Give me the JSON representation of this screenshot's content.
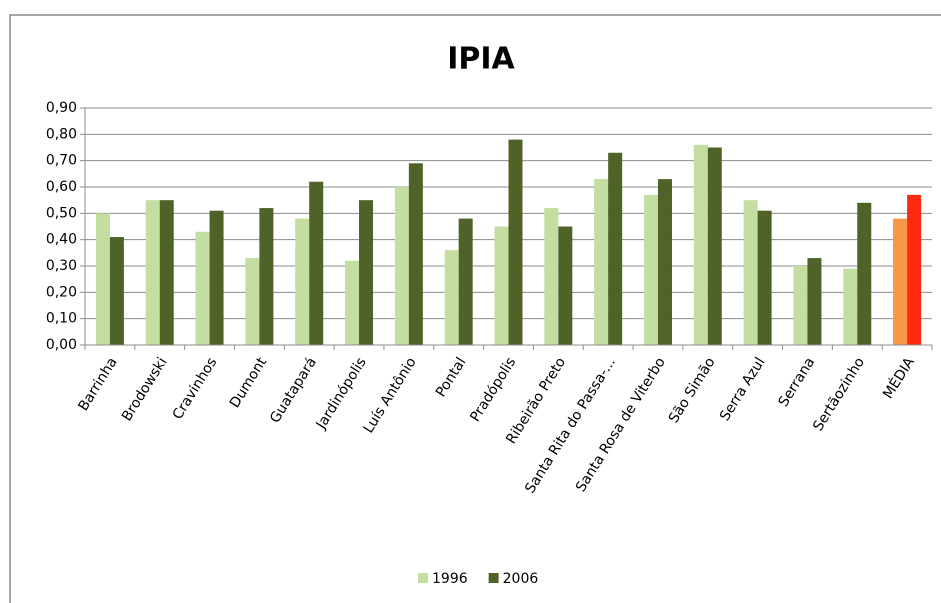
{
  "chart_data": {
    "type": "bar",
    "title": "IPIA",
    "categories": [
      "Barrinha",
      "Brodowski",
      "Cravinhos",
      "Dumont",
      "Guatapará",
      "Jardinópolis",
      "Luís Antônio",
      "Pontal",
      "Pradópolis",
      "Ribeirão Preto",
      "Santa Rita do Passa-...",
      "Santa Rosa de Viterbo",
      "São Simão",
      "Serra Azul",
      "Serrana",
      "Sertãozinho",
      "MÉDIA"
    ],
    "series": [
      {
        "name": "1996",
        "color": "#c3dea0",
        "colors": [
          "#c3dea0",
          "#c3dea0",
          "#c3dea0",
          "#c3dea0",
          "#c3dea0",
          "#c3dea0",
          "#c3dea0",
          "#c3dea0",
          "#c3dea0",
          "#c3dea0",
          "#c3dea0",
          "#c3dea0",
          "#c3dea0",
          "#c3dea0",
          "#c3dea0",
          "#c3dea0",
          "#f79646"
        ],
        "values": [
          0.5,
          0.55,
          0.43,
          0.33,
          0.48,
          0.32,
          0.6,
          0.36,
          0.45,
          0.52,
          0.63,
          0.57,
          0.76,
          0.55,
          0.3,
          0.29,
          0.48
        ]
      },
      {
        "name": "2006",
        "color": "#4f6228",
        "colors": [
          "#4f6228",
          "#4f6228",
          "#4f6228",
          "#4f6228",
          "#4f6228",
          "#4f6228",
          "#4f6228",
          "#4f6228",
          "#4f6228",
          "#4f6228",
          "#4f6228",
          "#4f6228",
          "#4f6228",
          "#4f6228",
          "#4f6228",
          "#4f6228",
          "#ff2a0f"
        ],
        "values": [
          0.41,
          0.55,
          0.51,
          0.52,
          0.62,
          0.55,
          0.69,
          0.48,
          0.78,
          0.45,
          0.73,
          0.63,
          0.75,
          0.51,
          0.33,
          0.54,
          0.57
        ]
      }
    ],
    "ylim": [
      0,
      0.9
    ],
    "yticks": [
      {
        "value": 0,
        "label": "0,00"
      },
      {
        "value": 0.1,
        "label": "0,10"
      },
      {
        "value": 0.2,
        "label": "0,20"
      },
      {
        "value": 0.3,
        "label": "0,30"
      },
      {
        "value": 0.4,
        "label": "0,40"
      },
      {
        "value": 0.5,
        "label": "0,50"
      },
      {
        "value": 0.6,
        "label": "0,60"
      },
      {
        "value": 0.7,
        "label": "0,70"
      },
      {
        "value": 0.8,
        "label": "0,80"
      },
      {
        "value": 0.9,
        "label": "0,90"
      }
    ],
    "grid": true,
    "legend": "bottom"
  }
}
